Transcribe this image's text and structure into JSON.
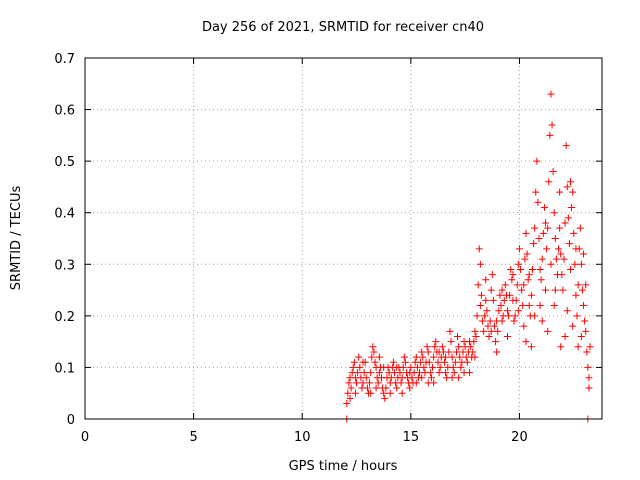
{
  "chart_data": {
    "type": "scatter",
    "title": "Day 256 of 2021, SRMTID for receiver cn40",
    "xlabel": "GPS time / hours",
    "ylabel": "SRMTID / TECUs",
    "xlim": [
      0,
      23.8
    ],
    "ylim": [
      0,
      0.7
    ],
    "x_ticks": [
      0,
      5,
      10,
      15,
      20
    ],
    "x_tick_labels": [
      "0",
      "5",
      "10",
      "15",
      "20"
    ],
    "y_ticks": [
      0,
      0.1,
      0.2,
      0.3,
      0.4,
      0.5,
      0.6,
      0.7
    ],
    "y_tick_labels": [
      "0",
      "0.1",
      "0.2",
      "0.3",
      "0.4",
      "0.5",
      "0.6",
      "0.7"
    ],
    "grid": true,
    "legend": "none",
    "marker": "plus",
    "color": "#ff0000",
    "series": [
      {
        "name": "SRMTID",
        "points": [
          [
            12.05,
            0.0
          ],
          [
            23.15,
            0.0
          ],
          [
            12.05,
            0.03
          ],
          [
            12.1,
            0.05
          ],
          [
            12.15,
            0.07
          ],
          [
            12.2,
            0.08
          ],
          [
            12.25,
            0.06
          ],
          [
            12.3,
            0.09
          ],
          [
            12.35,
            0.1
          ],
          [
            12.4,
            0.11
          ],
          [
            12.45,
            0.08
          ],
          [
            12.5,
            0.07
          ],
          [
            12.55,
            0.09
          ],
          [
            12.6,
            0.12
          ],
          [
            12.65,
            0.1
          ],
          [
            12.7,
            0.08
          ],
          [
            12.75,
            0.06
          ],
          [
            12.8,
            0.07
          ],
          [
            12.85,
            0.09
          ],
          [
            12.9,
            0.11
          ],
          [
            12.95,
            0.08
          ],
          [
            13.0,
            0.06
          ],
          [
            13.05,
            0.05
          ],
          [
            13.1,
            0.07
          ],
          [
            13.15,
            0.09
          ],
          [
            13.2,
            0.12
          ],
          [
            13.25,
            0.14
          ],
          [
            13.3,
            0.13
          ],
          [
            13.35,
            0.11
          ],
          [
            13.4,
            0.1
          ],
          [
            13.45,
            0.08
          ],
          [
            13.5,
            0.07
          ],
          [
            13.55,
            0.09
          ],
          [
            13.6,
            0.1
          ],
          [
            13.65,
            0.08
          ],
          [
            13.7,
            0.06
          ],
          [
            13.75,
            0.05
          ],
          [
            13.8,
            0.04
          ],
          [
            13.85,
            0.06
          ],
          [
            13.9,
            0.08
          ],
          [
            13.95,
            0.1
          ],
          [
            14.0,
            0.09
          ],
          [
            14.05,
            0.07
          ],
          [
            14.1,
            0.08
          ],
          [
            14.15,
            0.1
          ],
          [
            14.2,
            0.11
          ],
          [
            14.25,
            0.09
          ],
          [
            14.3,
            0.07
          ],
          [
            14.35,
            0.06
          ],
          [
            14.4,
            0.08
          ],
          [
            14.45,
            0.1
          ],
          [
            14.5,
            0.09
          ],
          [
            14.55,
            0.07
          ],
          [
            14.6,
            0.08
          ],
          [
            14.65,
            0.1
          ],
          [
            14.7,
            0.12
          ],
          [
            14.75,
            0.11
          ],
          [
            14.8,
            0.09
          ],
          [
            14.85,
            0.08
          ],
          [
            14.9,
            0.07
          ],
          [
            14.95,
            0.09
          ],
          [
            15.0,
            0.1
          ],
          [
            15.05,
            0.08
          ],
          [
            15.1,
            0.07
          ],
          [
            15.15,
            0.09
          ],
          [
            15.2,
            0.11
          ],
          [
            15.25,
            0.12
          ],
          [
            15.3,
            0.1
          ],
          [
            15.35,
            0.08
          ],
          [
            15.4,
            0.09
          ],
          [
            15.45,
            0.11
          ],
          [
            15.5,
            0.13
          ],
          [
            15.55,
            0.12
          ],
          [
            15.6,
            0.1
          ],
          [
            15.65,
            0.09
          ],
          [
            15.7,
            0.11
          ],
          [
            15.75,
            0.14
          ],
          [
            15.8,
            0.13
          ],
          [
            15.85,
            0.11
          ],
          [
            15.9,
            0.09
          ],
          [
            15.95,
            0.08
          ],
          [
            16.0,
            0.1
          ],
          [
            16.05,
            0.12
          ],
          [
            16.1,
            0.14
          ],
          [
            16.15,
            0.15
          ],
          [
            16.2,
            0.13
          ],
          [
            16.25,
            0.11
          ],
          [
            16.3,
            0.09
          ],
          [
            16.35,
            0.1
          ],
          [
            16.4,
            0.12
          ],
          [
            16.45,
            0.14
          ],
          [
            16.5,
            0.13
          ],
          [
            16.55,
            0.11
          ],
          [
            16.6,
            0.09
          ],
          [
            16.65,
            0.08
          ],
          [
            16.7,
            0.1
          ],
          [
            16.75,
            0.13
          ],
          [
            16.8,
            0.17
          ],
          [
            16.85,
            0.15
          ],
          [
            16.9,
            0.12
          ],
          [
            16.95,
            0.1
          ],
          [
            17.0,
            0.09
          ],
          [
            17.05,
            0.11
          ],
          [
            17.1,
            0.13
          ],
          [
            17.15,
            0.16
          ],
          [
            17.2,
            0.14
          ],
          [
            17.25,
            0.12
          ],
          [
            17.3,
            0.1
          ],
          [
            17.35,
            0.11
          ],
          [
            17.4,
            0.13
          ],
          [
            17.45,
            0.15
          ],
          [
            17.5,
            0.14
          ],
          [
            17.55,
            0.12
          ],
          [
            17.6,
            0.11
          ],
          [
            17.65,
            0.13
          ],
          [
            17.7,
            0.15
          ],
          [
            17.75,
            0.14
          ],
          [
            17.8,
            0.12
          ],
          [
            17.85,
            0.13
          ],
          [
            17.9,
            0.15
          ],
          [
            17.95,
            0.17
          ],
          [
            18.0,
            0.16
          ],
          [
            18.05,
            0.2
          ],
          [
            18.1,
            0.26
          ],
          [
            18.15,
            0.33
          ],
          [
            18.2,
            0.3
          ],
          [
            18.25,
            0.24
          ],
          [
            18.3,
            0.19
          ],
          [
            18.35,
            0.17
          ],
          [
            18.4,
            0.2
          ],
          [
            18.45,
            0.23
          ],
          [
            18.5,
            0.21
          ],
          [
            18.55,
            0.18
          ],
          [
            18.6,
            0.16
          ],
          [
            18.65,
            0.19
          ],
          [
            18.7,
            0.25
          ],
          [
            18.75,
            0.28
          ],
          [
            18.8,
            0.23
          ],
          [
            18.85,
            0.18
          ],
          [
            18.9,
            0.15
          ],
          [
            18.95,
            0.13
          ],
          [
            19.0,
            0.17
          ],
          [
            19.05,
            0.21
          ],
          [
            19.1,
            0.24
          ],
          [
            19.15,
            0.22
          ],
          [
            19.2,
            0.19
          ],
          [
            19.25,
            0.2
          ],
          [
            19.3,
            0.23
          ],
          [
            19.35,
            0.26
          ],
          [
            19.4,
            0.24
          ],
          [
            19.45,
            0.21
          ],
          [
            19.5,
            0.2
          ],
          [
            19.55,
            0.24
          ],
          [
            19.6,
            0.29
          ],
          [
            19.65,
            0.27
          ],
          [
            19.7,
            0.23
          ],
          [
            19.75,
            0.19
          ],
          [
            19.8,
            0.2
          ],
          [
            19.85,
            0.23
          ],
          [
            19.9,
            0.26
          ],
          [
            19.95,
            0.3
          ],
          [
            20.0,
            0.33
          ],
          [
            20.05,
            0.29
          ],
          [
            20.1,
            0.25
          ],
          [
            20.15,
            0.22
          ],
          [
            20.2,
            0.26
          ],
          [
            20.25,
            0.31
          ],
          [
            20.3,
            0.36
          ],
          [
            20.35,
            0.32
          ],
          [
            20.4,
            0.27
          ],
          [
            20.45,
            0.22
          ],
          [
            20.5,
            0.2
          ],
          [
            20.55,
            0.24
          ],
          [
            20.6,
            0.29
          ],
          [
            20.65,
            0.34
          ],
          [
            20.7,
            0.37
          ],
          [
            20.75,
            0.44
          ],
          [
            20.8,
            0.5
          ],
          [
            20.85,
            0.42
          ],
          [
            20.9,
            0.35
          ],
          [
            20.95,
            0.29
          ],
          [
            21.0,
            0.27
          ],
          [
            21.05,
            0.31
          ],
          [
            21.1,
            0.36
          ],
          [
            21.15,
            0.41
          ],
          [
            21.2,
            0.38
          ],
          [
            21.25,
            0.33
          ],
          [
            21.3,
            0.37
          ],
          [
            21.35,
            0.46
          ],
          [
            21.4,
            0.55
          ],
          [
            21.45,
            0.63
          ],
          [
            21.5,
            0.57
          ],
          [
            21.55,
            0.48
          ],
          [
            21.6,
            0.4
          ],
          [
            21.65,
            0.35
          ],
          [
            21.7,
            0.31
          ],
          [
            21.75,
            0.28
          ],
          [
            21.8,
            0.33
          ],
          [
            21.85,
            0.37
          ],
          [
            21.9,
            0.32
          ],
          [
            21.95,
            0.28
          ],
          [
            22.0,
            0.25
          ],
          [
            22.05,
            0.31
          ],
          [
            22.1,
            0.38
          ],
          [
            22.15,
            0.53
          ],
          [
            22.2,
            0.45
          ],
          [
            22.25,
            0.39
          ],
          [
            22.3,
            0.34
          ],
          [
            22.35,
            0.29
          ],
          [
            22.4,
            0.41
          ],
          [
            22.45,
            0.44
          ],
          [
            22.5,
            0.36
          ],
          [
            22.55,
            0.3
          ],
          [
            22.6,
            0.24
          ],
          [
            22.65,
            0.2
          ],
          [
            22.7,
            0.26
          ],
          [
            22.75,
            0.33
          ],
          [
            22.8,
            0.37
          ],
          [
            22.85,
            0.3
          ],
          [
            22.9,
            0.25
          ],
          [
            22.95,
            0.22
          ],
          [
            23.0,
            0.19
          ],
          [
            23.05,
            0.17
          ],
          [
            23.1,
            0.13
          ],
          [
            23.15,
            0.1
          ],
          [
            23.2,
            0.08
          ],
          [
            23.25,
            0.14
          ],
          [
            12.2,
            0.04
          ],
          [
            12.45,
            0.05
          ],
          [
            12.8,
            0.11
          ],
          [
            13.15,
            0.05
          ],
          [
            13.4,
            0.06
          ],
          [
            13.55,
            0.12
          ],
          [
            13.75,
            0.1
          ],
          [
            14.05,
            0.05
          ],
          [
            14.35,
            0.1
          ],
          [
            14.6,
            0.05
          ],
          [
            14.95,
            0.06
          ],
          [
            15.25,
            0.07
          ],
          [
            15.5,
            0.08
          ],
          [
            15.8,
            0.07
          ],
          [
            16.05,
            0.07
          ],
          [
            16.3,
            0.13
          ],
          [
            16.6,
            0.12
          ],
          [
            16.9,
            0.08
          ],
          [
            17.2,
            0.08
          ],
          [
            17.45,
            0.09
          ],
          [
            17.7,
            0.09
          ],
          [
            17.95,
            0.12
          ],
          [
            18.2,
            0.22
          ],
          [
            18.45,
            0.27
          ],
          [
            18.7,
            0.17
          ],
          [
            18.95,
            0.19
          ],
          [
            19.2,
            0.25
          ],
          [
            19.45,
            0.16
          ],
          [
            19.7,
            0.28
          ],
          [
            19.95,
            0.21
          ],
          [
            20.2,
            0.18
          ],
          [
            20.45,
            0.28
          ],
          [
            20.7,
            0.2
          ],
          [
            20.95,
            0.22
          ],
          [
            21.2,
            0.25
          ],
          [
            21.45,
            0.3
          ],
          [
            21.6,
            0.22
          ],
          [
            21.85,
            0.44
          ],
          [
            22.1,
            0.16
          ],
          [
            22.35,
            0.46
          ],
          [
            22.6,
            0.33
          ],
          [
            22.85,
            0.16
          ],
          [
            23.05,
            0.26
          ],
          [
            23.2,
            0.06
          ],
          [
            20.3,
            0.15
          ],
          [
            20.55,
            0.14
          ],
          [
            21.05,
            0.19
          ],
          [
            21.3,
            0.17
          ],
          [
            21.65,
            0.25
          ],
          [
            21.9,
            0.14
          ],
          [
            22.2,
            0.21
          ],
          [
            22.45,
            0.18
          ],
          [
            22.7,
            0.14
          ],
          [
            22.95,
            0.32
          ]
        ]
      }
    ]
  }
}
